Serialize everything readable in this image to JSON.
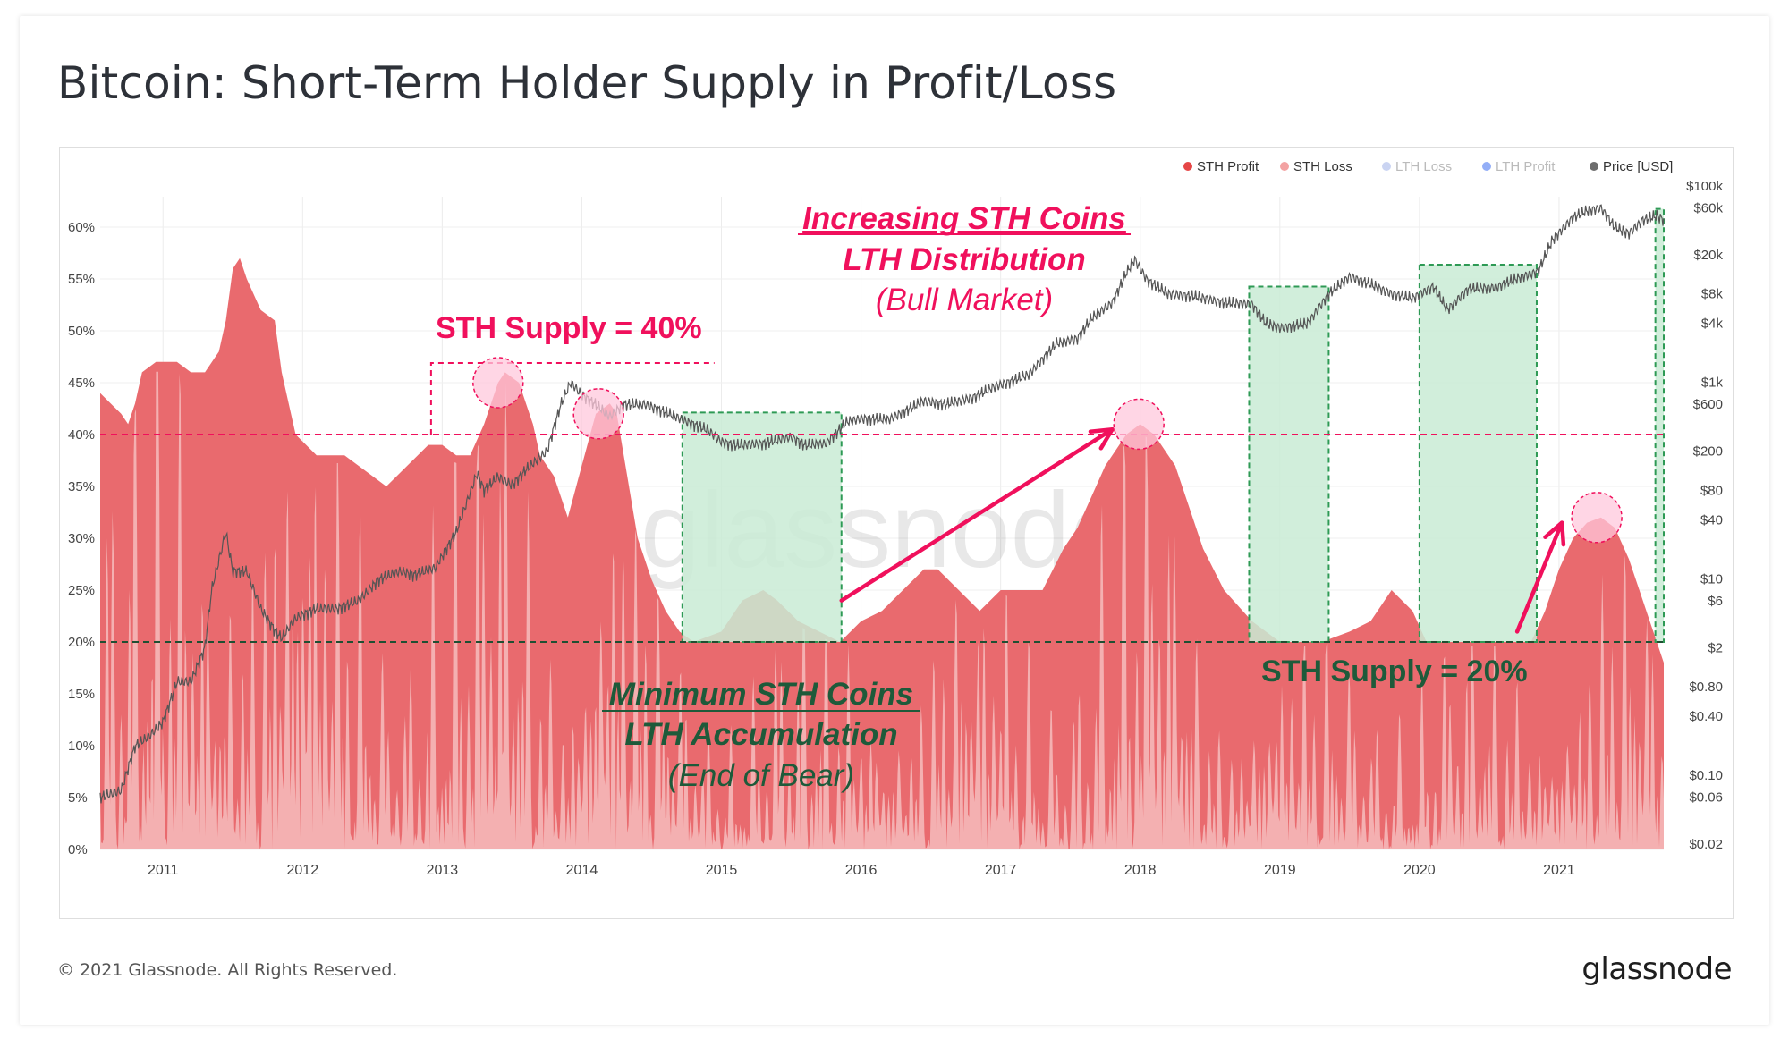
{
  "title": "Bitcoin: Short-Term Holder Supply in Profit/Loss",
  "footer": "© 2021 Glassnode. All Rights Reserved.",
  "brand": "glassnode",
  "watermark": "glassnode",
  "colors": {
    "sth_profit": "#e96a6e",
    "sth_loss": "#f4b6b6",
    "lth_loss": "#9fb1e8",
    "lth_profit": "#3b6cf0",
    "price": "#555555",
    "accent_red": "#f0105c",
    "accent_green": "#1e5a3a",
    "zone_fill": "#c9ebd5",
    "zone_border": "#2e9a55"
  },
  "chart_data": {
    "type": "area",
    "legend": [
      {
        "name": "STH Profit",
        "color": "#e64646",
        "active": true
      },
      {
        "name": "STH Loss",
        "color": "#f3a2a2",
        "active": true
      },
      {
        "name": "LTH Loss",
        "color": "#9fb1e8",
        "active": false
      },
      {
        "name": "LTH Profit",
        "color": "#3b6cf0",
        "active": false
      },
      {
        "name": "Price [USD]",
        "color": "#6d6d6d",
        "active": true
      }
    ],
    "legend_position": "top-right",
    "x_ticks": [
      "2011",
      "2012",
      "2013",
      "2014",
      "2015",
      "2016",
      "2017",
      "2018",
      "2019",
      "2020",
      "2021"
    ],
    "x_range": [
      2010.55,
      2021.75
    ],
    "y_left": {
      "ticks": [
        "0%",
        "5%",
        "10%",
        "15%",
        "20%",
        "25%",
        "30%",
        "35%",
        "40%",
        "45%",
        "50%",
        "55%",
        "60%"
      ],
      "range": [
        0,
        60
      ]
    },
    "y_right": {
      "scale": "log",
      "range": [
        0.02,
        100000
      ],
      "ticks": [
        {
          "label": "$100k",
          "value": 100000
        },
        {
          "label": "$60k",
          "value": 60000
        },
        {
          "label": "$20k",
          "value": 20000
        },
        {
          "label": "$8k",
          "value": 8000
        },
        {
          "label": "$4k",
          "value": 4000
        },
        {
          "label": "$1k",
          "value": 1000
        },
        {
          "label": "$600",
          "value": 600
        },
        {
          "label": "$200",
          "value": 200
        },
        {
          "label": "$80",
          "value": 80
        },
        {
          "label": "$40",
          "value": 40
        },
        {
          "label": "$10",
          "value": 10
        },
        {
          "label": "$6",
          "value": 6
        },
        {
          "label": "$2",
          "value": 2
        },
        {
          "label": "$0.80",
          "value": 0.8
        },
        {
          "label": "$0.40",
          "value": 0.4
        },
        {
          "label": "$0.10",
          "value": 0.1
        },
        {
          "label": "$0.06",
          "value": 0.06
        },
        {
          "label": "$0.02",
          "value": 0.02
        }
      ]
    },
    "sth_supply": {
      "name": "STH Supply",
      "points": [
        [
          2010.55,
          44
        ],
        [
          2010.7,
          42
        ],
        [
          2010.75,
          41
        ],
        [
          2010.8,
          43
        ],
        [
          2010.85,
          46
        ],
        [
          2010.95,
          47
        ],
        [
          2011.1,
          47
        ],
        [
          2011.2,
          46
        ],
        [
          2011.3,
          46
        ],
        [
          2011.4,
          48
        ],
        [
          2011.45,
          51
        ],
        [
          2011.5,
          56
        ],
        [
          2011.55,
          57
        ],
        [
          2011.6,
          55
        ],
        [
          2011.7,
          52
        ],
        [
          2011.8,
          51
        ],
        [
          2011.85,
          46
        ],
        [
          2011.95,
          40
        ],
        [
          2012.1,
          38
        ],
        [
          2012.3,
          38
        ],
        [
          2012.5,
          36
        ],
        [
          2012.6,
          35
        ],
        [
          2012.75,
          37
        ],
        [
          2012.9,
          39
        ],
        [
          2013.0,
          39
        ],
        [
          2013.1,
          38
        ],
        [
          2013.2,
          38
        ],
        [
          2013.3,
          41
        ],
        [
          2013.4,
          45
        ],
        [
          2013.45,
          46
        ],
        [
          2013.55,
          45
        ],
        [
          2013.6,
          43
        ],
        [
          2013.65,
          41
        ],
        [
          2013.7,
          38
        ],
        [
          2013.8,
          36
        ],
        [
          2013.9,
          32
        ],
        [
          2014.0,
          37
        ],
        [
          2014.1,
          42
        ],
        [
          2014.2,
          43
        ],
        [
          2014.25,
          42
        ],
        [
          2014.3,
          38
        ],
        [
          2014.4,
          30
        ],
        [
          2014.5,
          26
        ],
        [
          2014.6,
          23
        ],
        [
          2014.7,
          21
        ],
        [
          2014.8,
          20
        ],
        [
          2015.0,
          21
        ],
        [
          2015.15,
          24
        ],
        [
          2015.3,
          25
        ],
        [
          2015.4,
          24
        ],
        [
          2015.55,
          22
        ],
        [
          2015.7,
          21
        ],
        [
          2015.85,
          20
        ],
        [
          2016.0,
          22
        ],
        [
          2016.15,
          23
        ],
        [
          2016.3,
          25
        ],
        [
          2016.45,
          27
        ],
        [
          2016.55,
          27
        ],
        [
          2016.7,
          25
        ],
        [
          2016.85,
          23
        ],
        [
          2017.0,
          25
        ],
        [
          2017.15,
          25
        ],
        [
          2017.3,
          25
        ],
        [
          2017.45,
          29
        ],
        [
          2017.55,
          31
        ],
        [
          2017.65,
          34
        ],
        [
          2017.75,
          37
        ],
        [
          2017.9,
          40
        ],
        [
          2018.0,
          41
        ],
        [
          2018.1,
          40
        ],
        [
          2018.25,
          37
        ],
        [
          2018.45,
          29
        ],
        [
          2018.6,
          25
        ],
        [
          2018.8,
          22
        ],
        [
          2019.0,
          20
        ],
        [
          2019.1,
          20
        ],
        [
          2019.3,
          20
        ],
        [
          2019.5,
          21
        ],
        [
          2019.65,
          22
        ],
        [
          2019.8,
          25
        ],
        [
          2019.95,
          23
        ],
        [
          2020.05,
          20
        ],
        [
          2020.3,
          20
        ],
        [
          2020.5,
          20
        ],
        [
          2020.6,
          20
        ],
        [
          2020.8,
          20
        ],
        [
          2020.9,
          23
        ],
        [
          2021.0,
          27
        ],
        [
          2021.1,
          30
        ],
        [
          2021.2,
          31.5
        ],
        [
          2021.3,
          32
        ],
        [
          2021.4,
          31
        ],
        [
          2021.5,
          28
        ],
        [
          2021.6,
          24
        ],
        [
          2021.7,
          20
        ],
        [
          2021.75,
          18
        ]
      ]
    },
    "price": {
      "name": "Price [USD]",
      "points": [
        [
          2010.55,
          0.06
        ],
        [
          2010.7,
          0.07
        ],
        [
          2010.8,
          0.2
        ],
        [
          2010.9,
          0.25
        ],
        [
          2011.0,
          0.35
        ],
        [
          2011.1,
          0.9
        ],
        [
          2011.2,
          0.9
        ],
        [
          2011.3,
          2
        ],
        [
          2011.35,
          8
        ],
        [
          2011.45,
          30
        ],
        [
          2011.5,
          12
        ],
        [
          2011.6,
          12
        ],
        [
          2011.7,
          5
        ],
        [
          2011.8,
          3
        ],
        [
          2011.85,
          2.5
        ],
        [
          2011.95,
          4
        ],
        [
          2012.1,
          5
        ],
        [
          2012.25,
          5
        ],
        [
          2012.4,
          6
        ],
        [
          2012.55,
          10
        ],
        [
          2012.7,
          12
        ],
        [
          2012.8,
          11
        ],
        [
          2012.95,
          13
        ],
        [
          2013.1,
          30
        ],
        [
          2013.25,
          120
        ],
        [
          2013.3,
          80
        ],
        [
          2013.4,
          110
        ],
        [
          2013.5,
          90
        ],
        [
          2013.6,
          130
        ],
        [
          2013.75,
          200
        ],
        [
          2013.85,
          600
        ],
        [
          2013.92,
          1000
        ],
        [
          2014.0,
          750
        ],
        [
          2014.1,
          600
        ],
        [
          2014.2,
          450
        ],
        [
          2014.3,
          600
        ],
        [
          2014.45,
          600
        ],
        [
          2014.6,
          500
        ],
        [
          2014.75,
          400
        ],
        [
          2014.9,
          330
        ],
        [
          2015.0,
          250
        ],
        [
          2015.1,
          230
        ],
        [
          2015.3,
          240
        ],
        [
          2015.5,
          280
        ],
        [
          2015.6,
          230
        ],
        [
          2015.75,
          240
        ],
        [
          2015.9,
          400
        ],
        [
          2016.0,
          430
        ],
        [
          2016.2,
          420
        ],
        [
          2016.45,
          650
        ],
        [
          2016.6,
          600
        ],
        [
          2016.8,
          700
        ],
        [
          2016.95,
          900
        ],
        [
          2017.05,
          1000
        ],
        [
          2017.2,
          1200
        ],
        [
          2017.4,
          2500
        ],
        [
          2017.55,
          2800
        ],
        [
          2017.65,
          4500
        ],
        [
          2017.8,
          6500
        ],
        [
          2017.9,
          13000
        ],
        [
          2017.96,
          18000
        ],
        [
          2018.05,
          11000
        ],
        [
          2018.2,
          8000
        ],
        [
          2018.4,
          7500
        ],
        [
          2018.6,
          6500
        ],
        [
          2018.8,
          6300
        ],
        [
          2018.9,
          4000
        ],
        [
          2019.0,
          3600
        ],
        [
          2019.2,
          4000
        ],
        [
          2019.35,
          8000
        ],
        [
          2019.5,
          12000
        ],
        [
          2019.65,
          10000
        ],
        [
          2019.8,
          8000
        ],
        [
          2019.95,
          7200
        ],
        [
          2020.1,
          9500
        ],
        [
          2020.2,
          5500
        ],
        [
          2020.35,
          9000
        ],
        [
          2020.55,
          9300
        ],
        [
          2020.7,
          11500
        ],
        [
          2020.85,
          13500
        ],
        [
          2020.95,
          28000
        ],
        [
          2021.1,
          48000
        ],
        [
          2021.2,
          56000
        ],
        [
          2021.3,
          60000
        ],
        [
          2021.4,
          38000
        ],
        [
          2021.5,
          33000
        ],
        [
          2021.6,
          45000
        ],
        [
          2021.7,
          50000
        ],
        [
          2021.75,
          45000
        ]
      ]
    }
  },
  "annotations": {
    "sth40_label": "STH Supply = 40%",
    "sth20_label": "STH Supply = 20%",
    "bull_line1": "Increasing STH Coins",
    "bull_line2": "LTH Distribution",
    "bull_line3": "(Bull Market)",
    "bear_line1": "Minimum STH Coins",
    "bear_line2": "LTH Accumulation",
    "bear_line3": "(End of Bear)",
    "level_high": 40,
    "level_low": 20,
    "zones": [
      [
        2014.72,
        2015.86
      ],
      [
        2018.78,
        2019.35
      ],
      [
        2020.0,
        2020.84
      ],
      [
        2021.69,
        2021.82
      ]
    ],
    "peaks": [
      [
        2013.4,
        45
      ],
      [
        2014.12,
        42
      ],
      [
        2017.99,
        41
      ],
      [
        2021.27,
        32
      ]
    ],
    "arrows": [
      [
        [
          2015.86,
          24
        ],
        [
          2017.8,
          40.5
        ]
      ],
      [
        [
          2020.7,
          21
        ],
        [
          2021.02,
          31.5
        ]
      ]
    ]
  }
}
